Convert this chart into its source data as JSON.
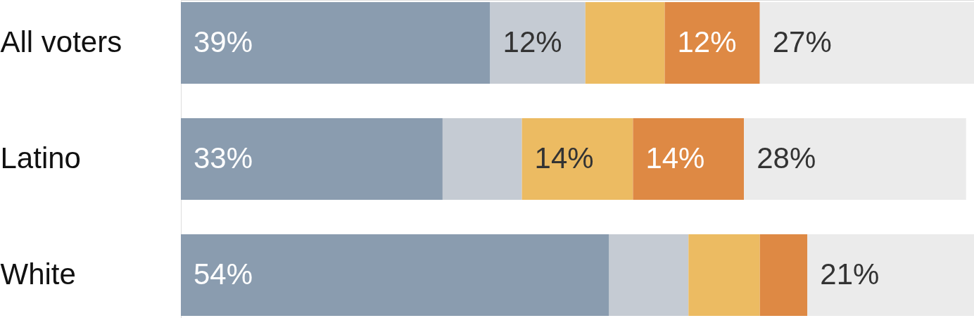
{
  "chart_data": {
    "type": "bar",
    "orientation": "horizontal",
    "stacked": true,
    "categories": [
      "All voters",
      "Latino",
      "White"
    ],
    "series": [
      {
        "color": "#8a9caf",
        "values": [
          39,
          33,
          54
        ],
        "value_labels": [
          "39%",
          "33%",
          "54%"
        ]
      },
      {
        "color": "#c5cbd3",
        "values": [
          12,
          10,
          10
        ],
        "value_labels": [
          "12%",
          null,
          null
        ]
      },
      {
        "color": "#ecbb62",
        "values": [
          10,
          14,
          9
        ],
        "value_labels": [
          null,
          "14%",
          null
        ]
      },
      {
        "color": "#de8944",
        "values": [
          12,
          14,
          6
        ],
        "value_labels": [
          "12%",
          "14%",
          null
        ]
      },
      {
        "color": "#ebebeb",
        "values": [
          27,
          28,
          21
        ],
        "value_labels": [
          "27%",
          "28%",
          "21%"
        ]
      }
    ],
    "xlim": [
      0,
      100
    ],
    "tick_labels": "y",
    "legend": false
  }
}
